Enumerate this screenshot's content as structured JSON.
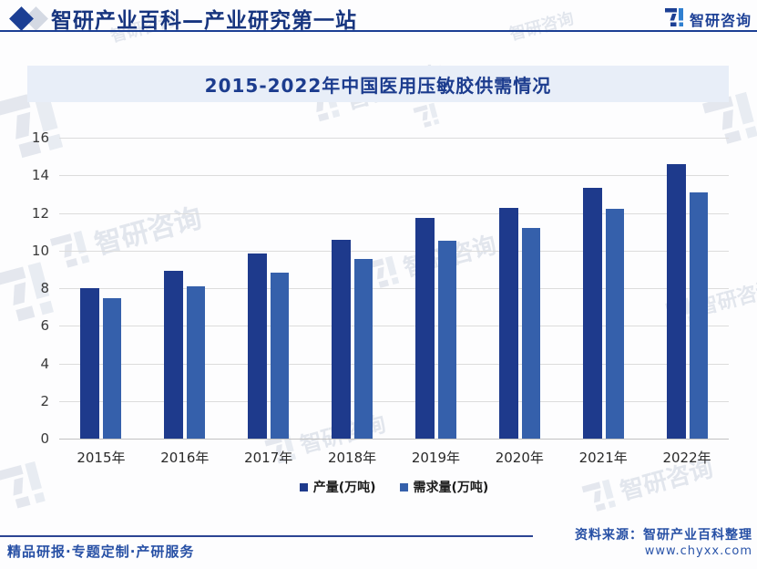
{
  "header": {
    "title": "智研产业百科—产业研究第一站",
    "brand": "智研咨询"
  },
  "chart": {
    "title": "2015-2022年中国医用压敏胶供需情况"
  },
  "chart_data": {
    "type": "bar",
    "categories": [
      "2015年",
      "2016年",
      "2017年",
      "2018年",
      "2019年",
      "2020年",
      "2021年",
      "2022年"
    ],
    "series": [
      {
        "name": "产量(万吨)",
        "color": "#1e3a8c",
        "values": [
          8.0,
          8.9,
          9.85,
          10.55,
          11.75,
          12.25,
          13.35,
          14.6
        ]
      },
      {
        "name": "需求量(万吨)",
        "color": "#3560ab",
        "values": [
          7.45,
          8.1,
          8.85,
          9.55,
          10.5,
          11.2,
          12.2,
          13.1
        ]
      }
    ],
    "title": "2015-2022年中国医用压敏胶供需情况",
    "xlabel": "",
    "ylabel": "",
    "ylim": [
      0,
      16
    ],
    "ytick_step": 2,
    "grid": true,
    "legend_position": "bottom"
  },
  "footer": {
    "left": "精品研报·专题定制·产研服务",
    "source": "资料来源：智研产业百科整理",
    "website": "www.chyxx.com"
  },
  "watermark": {
    "text": "智研咨询"
  },
  "colors": {
    "accent_navy": "#1c3f94",
    "band_bg": "#e8eef8",
    "bar_production": "#1e3a8c",
    "bar_demand": "#3560ab"
  }
}
